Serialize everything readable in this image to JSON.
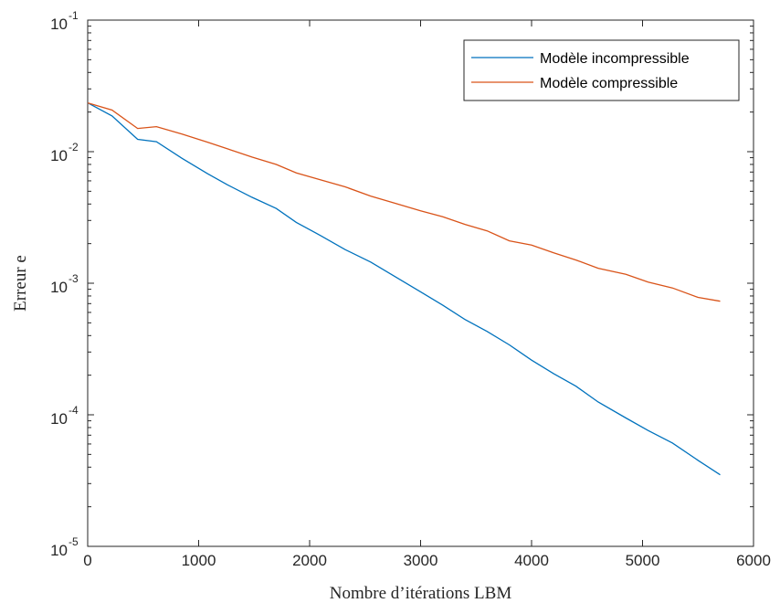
{
  "chart_data": {
    "type": "line",
    "xlabel": "Nombre d’itérations LBM",
    "ylabel": "Erreur e",
    "xlim": [
      0,
      6000
    ],
    "ylim": [
      1e-05,
      0.1
    ],
    "yscale": "log",
    "x_ticks": [
      0,
      1000,
      2000,
      3000,
      4000,
      5000,
      6000
    ],
    "x_tick_labels": [
      "0",
      "1000",
      "2000",
      "3000",
      "4000",
      "5000",
      "6000"
    ],
    "y_ticks": [
      {
        "value": 1e-05,
        "base": "10",
        "exp": "-5"
      },
      {
        "value": 0.0001,
        "base": "10",
        "exp": "-4"
      },
      {
        "value": 0.001,
        "base": "10",
        "exp": "-3"
      },
      {
        "value": 0.01,
        "base": "10",
        "exp": "-2"
      },
      {
        "value": 0.1,
        "base": "10",
        "exp": "-1"
      }
    ],
    "grid": false,
    "legend_position": "top-right",
    "series": [
      {
        "name": "Modèle incompressible",
        "color": "#0072BD",
        "x": [
          0,
          220,
          450,
          620,
          850,
          1080,
          1260,
          1480,
          1700,
          1880,
          2100,
          2320,
          2550,
          2750,
          3000,
          3200,
          3400,
          3600,
          3800,
          4000,
          4200,
          4400,
          4600,
          4850,
          5050,
          5270,
          5500,
          5700
        ],
        "y": [
          0.0235,
          0.0187,
          0.0124,
          0.0119,
          0.0089,
          0.0068,
          0.0056,
          0.0045,
          0.0037,
          0.0029,
          0.0023,
          0.0018,
          0.00145,
          0.00115,
          0.00086,
          0.00068,
          0.00053,
          0.00043,
          0.00034,
          0.00026,
          0.000205,
          0.000165,
          0.000125,
          9.45e-05,
          7.6e-05,
          6.1e-05,
          4.5e-05,
          3.5e-05
        ]
      },
      {
        "name": "Modèle compressible",
        "color": "#D95319",
        "x": [
          0,
          220,
          450,
          620,
          850,
          1080,
          1260,
          1480,
          1700,
          1880,
          2100,
          2320,
          2550,
          2750,
          3000,
          3200,
          3400,
          3600,
          3800,
          4000,
          4200,
          4400,
          4600,
          4850,
          5050,
          5270,
          5500,
          5700
        ],
        "y": [
          0.0235,
          0.0207,
          0.015,
          0.0155,
          0.0136,
          0.0118,
          0.0105,
          0.0091,
          0.008,
          0.0069,
          0.0061,
          0.0054,
          0.0046,
          0.0041,
          0.00355,
          0.0032,
          0.0028,
          0.0025,
          0.0021,
          0.00195,
          0.0017,
          0.0015,
          0.0013,
          0.00117,
          0.00102,
          0.00092,
          0.00078,
          0.00073
        ]
      }
    ]
  }
}
